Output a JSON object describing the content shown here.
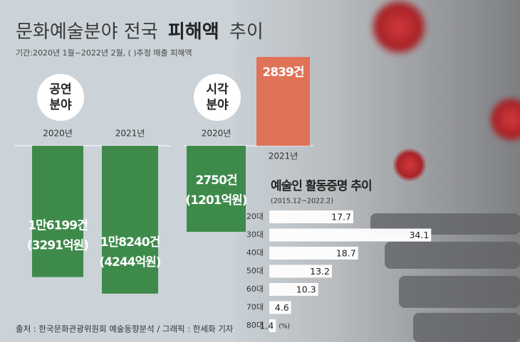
{
  "title_parts": [
    "문화예술분야 전국",
    "피해액",
    "추이"
  ],
  "subtitle": "기간:2020년 1월~2022년 2월, ( )추정 매출 피해액",
  "source": "출처 : 한국문화관광위원회 예술동향분석 / 그래픽 : 한세화 기자",
  "chart_data": [
    {
      "type": "bar",
      "label_lines": [
        "공연",
        "분야"
      ],
      "categories": [
        "2020년",
        "2021년"
      ],
      "values": [
        16199,
        18240
      ],
      "value_labels": [
        "1만6199건",
        "1만8240건"
      ],
      "loss_labels": [
        "(3291억원)",
        "(4244억원)"
      ],
      "colors": [
        "#3e8a4b",
        "#3e8a4b"
      ],
      "ylim": [
        0,
        20000
      ]
    },
    {
      "type": "bar",
      "label_lines": [
        "시각",
        "분야"
      ],
      "categories": [
        "2020년",
        "2021년"
      ],
      "values": [
        2750,
        2839
      ],
      "value_labels": [
        "2750건",
        "2839건"
      ],
      "loss_labels": [
        "(1201억원)",
        null
      ],
      "colors": [
        "#3e8a4b",
        "#e07258"
      ],
      "ylim": [
        0,
        5000
      ]
    },
    {
      "type": "hbar",
      "title": "예술인 활동증명 추이",
      "subtitle": "(2015.12~2022.2)",
      "categories": [
        "20대",
        "30대",
        "40대",
        "50대",
        "60대",
        "70대",
        "80대"
      ],
      "values": [
        17.7,
        34.1,
        18.7,
        13.2,
        10.3,
        4.6,
        1.4
      ],
      "unit": "(%)",
      "color": "#ffffff",
      "xlim": [
        0,
        36
      ]
    }
  ]
}
